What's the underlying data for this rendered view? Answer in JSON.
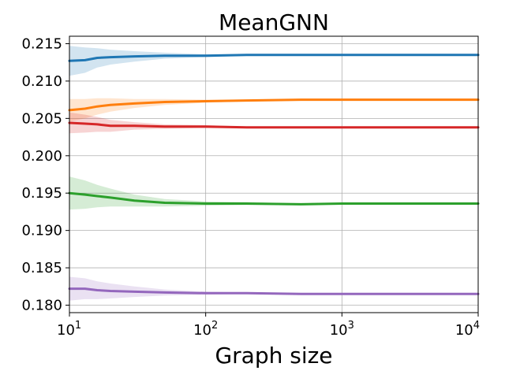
{
  "chart_data": {
    "type": "line",
    "title": "MeanGNN",
    "xlabel": "Graph size",
    "ylabel": "",
    "xscale": "log",
    "xlim": [
      10,
      10000
    ],
    "ylim": [
      0.179,
      0.216
    ],
    "grid": true,
    "x_ticks": [
      {
        "value": 10,
        "base": "10",
        "exp": "1"
      },
      {
        "value": 100,
        "base": "10",
        "exp": "2"
      },
      {
        "value": 1000,
        "base": "10",
        "exp": "3"
      },
      {
        "value": 10000,
        "base": "10",
        "exp": "4"
      }
    ],
    "y_ticks": [
      {
        "value": 0.18,
        "label": "0.180"
      },
      {
        "value": 0.185,
        "label": "0.185"
      },
      {
        "value": 0.19,
        "label": "0.190"
      },
      {
        "value": 0.195,
        "label": "0.195"
      },
      {
        "value": 0.2,
        "label": "0.200"
      },
      {
        "value": 0.205,
        "label": "0.205"
      },
      {
        "value": 0.21,
        "label": "0.210"
      },
      {
        "value": 0.215,
        "label": "0.215"
      }
    ],
    "series": [
      {
        "color": "#1f77b4",
        "x": [
          10,
          13,
          16,
          20,
          30,
          50,
          100,
          200,
          500,
          1000,
          2000,
          5000,
          10000
        ],
        "y": [
          0.2127,
          0.2128,
          0.2131,
          0.2132,
          0.2133,
          0.2134,
          0.2134,
          0.2135,
          0.2135,
          0.2135,
          0.2135,
          0.2135,
          0.2135
        ],
        "band": [
          0.002,
          0.0017,
          0.0013,
          0.001,
          0.0007,
          0.0004,
          0.0002,
          0.0001,
          0.0001,
          0.0001,
          0.0001,
          0.0001,
          0.0001
        ]
      },
      {
        "color": "#ff7f0e",
        "x": [
          10,
          13,
          16,
          20,
          30,
          50,
          100,
          200,
          500,
          1000,
          2000,
          5000,
          10000
        ],
        "y": [
          0.2061,
          0.2063,
          0.2066,
          0.2068,
          0.207,
          0.2072,
          0.2073,
          0.2074,
          0.2075,
          0.2075,
          0.2075,
          0.2075,
          0.2075
        ],
        "band": [
          0.0015,
          0.0013,
          0.0011,
          0.0009,
          0.0006,
          0.0004,
          0.0002,
          0.0001,
          0.0001,
          0.0001,
          0.0001,
          0.0001,
          0.0001
        ]
      },
      {
        "color": "#d62728",
        "x": [
          10,
          13,
          16,
          20,
          30,
          50,
          100,
          200,
          500,
          1000,
          2000,
          5000,
          10000
        ],
        "y": [
          0.2044,
          0.2043,
          0.2042,
          0.204,
          0.204,
          0.2039,
          0.2039,
          0.2038,
          0.2038,
          0.2038,
          0.2038,
          0.2038,
          0.2038
        ],
        "band": [
          0.0014,
          0.0012,
          0.001,
          0.0008,
          0.0005,
          0.0003,
          0.0002,
          0.0001,
          0.0001,
          0.0001,
          0.0001,
          0.0001,
          0.0001
        ]
      },
      {
        "color": "#2ca02c",
        "x": [
          10,
          13,
          16,
          20,
          30,
          50,
          100,
          200,
          500,
          1000,
          2000,
          5000,
          10000
        ],
        "y": [
          0.195,
          0.1948,
          0.1946,
          0.1944,
          0.194,
          0.1937,
          0.1936,
          0.1936,
          0.1935,
          0.1936,
          0.1936,
          0.1936,
          0.1936
        ],
        "band": [
          0.0022,
          0.0019,
          0.0015,
          0.0012,
          0.0008,
          0.0005,
          0.0003,
          0.0002,
          0.0001,
          0.0001,
          0.0001,
          0.0001,
          0.0001
        ]
      },
      {
        "color": "#9467bd",
        "x": [
          10,
          13,
          16,
          20,
          30,
          50,
          100,
          200,
          500,
          1000,
          2000,
          5000,
          10000
        ],
        "y": [
          0.1822,
          0.1822,
          0.182,
          0.1819,
          0.1818,
          0.1817,
          0.1816,
          0.1816,
          0.1815,
          0.1815,
          0.1815,
          0.1815,
          0.1815
        ],
        "band": [
          0.0016,
          0.0014,
          0.0012,
          0.001,
          0.0007,
          0.0004,
          0.0002,
          0.0001,
          0.0001,
          0.0001,
          0.0001,
          0.0001,
          0.0001
        ]
      }
    ]
  }
}
